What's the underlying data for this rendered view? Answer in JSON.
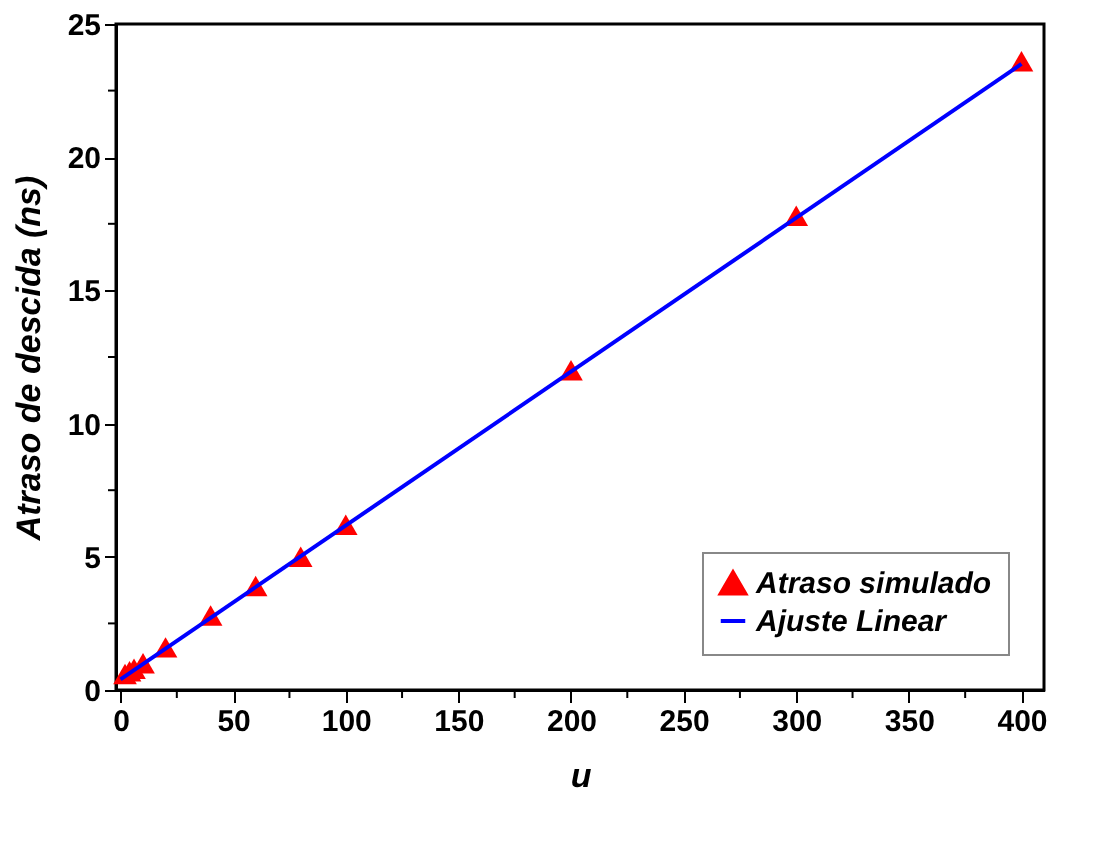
{
  "chart_data": {
    "type": "scatter",
    "xlabel": "u",
    "ylabel": "Atraso de descida (ns)",
    "xlim": [
      -2,
      410
    ],
    "ylim": [
      0,
      25
    ],
    "xticks": [
      0,
      {
        "value": 25,
        "label": null
      },
      50,
      {
        "value": 75,
        "label": null
      },
      100,
      {
        "value": 125,
        "label": null
      },
      150,
      {
        "value": 175,
        "label": null
      },
      200,
      {
        "value": 225,
        "label": null
      },
      250,
      {
        "value": 275,
        "label": null
      },
      300,
      {
        "value": 325,
        "label": null
      },
      350,
      {
        "value": 375,
        "label": null
      },
      400
    ],
    "yticks": [
      0,
      {
        "value": 2.5,
        "label": null
      },
      5,
      {
        "value": 7.5,
        "label": null
      },
      10,
      {
        "value": 12.5,
        "label": null
      },
      15,
      {
        "value": 17.5,
        "label": null
      },
      20,
      {
        "value": 22.5,
        "label": null
      },
      25
    ],
    "series": [
      {
        "name": "Atraso simulado",
        "type": "scatter",
        "marker": "triangle",
        "color": "#ff0000",
        "x": [
          2,
          4,
          6,
          10,
          20,
          40,
          60,
          80,
          100,
          200,
          300,
          400
        ],
        "values": [
          0.6,
          0.7,
          0.8,
          1.0,
          1.6,
          2.8,
          3.9,
          5.0,
          6.2,
          12.0,
          17.8,
          23.6
        ]
      },
      {
        "name": "Ajuste Linear",
        "type": "line",
        "marker": "none",
        "line_style": "solid",
        "color": "#0000ff",
        "x": [
          0,
          400
        ],
        "values": [
          0.4,
          23.5
        ]
      }
    ],
    "legend": "bottom right",
    "grid": false
  }
}
